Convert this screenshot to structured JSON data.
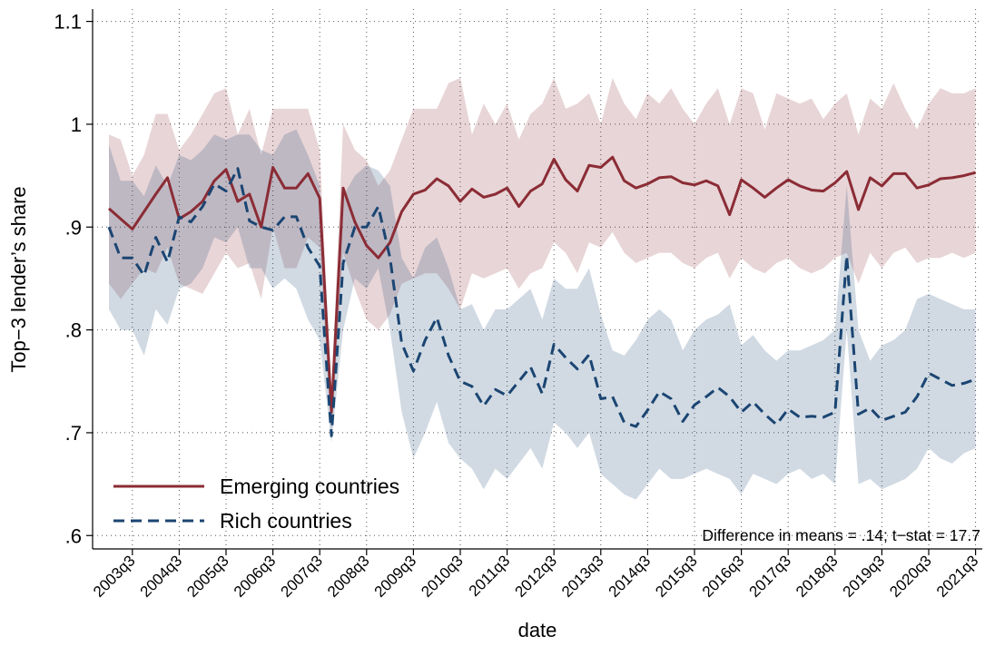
{
  "chart_data": {
    "type": "line",
    "x_label": "date",
    "y_label": "Top−3 lender’s share",
    "annotation": "Difference in means = .14; t−stat = 17.7",
    "categories": [
      null,
      null,
      "2003q3",
      null,
      null,
      null,
      "2004q3",
      null,
      null,
      null,
      "2005q3",
      null,
      null,
      null,
      "2006q3",
      null,
      null,
      null,
      "2007q3",
      null,
      null,
      null,
      "2008q3",
      null,
      null,
      null,
      "2009q3",
      null,
      null,
      null,
      "2010q3",
      null,
      null,
      null,
      "2011q3",
      null,
      null,
      null,
      "2012q3",
      null,
      null,
      null,
      "2013q3",
      null,
      null,
      null,
      "2014q3",
      null,
      null,
      null,
      "2015q3",
      null,
      null,
      null,
      "2016q3",
      null,
      null,
      null,
      "2017q3",
      null,
      null,
      null,
      "2018q3",
      null,
      null,
      null,
      "2019q3",
      null,
      null,
      null,
      "2020q3",
      null,
      null,
      null,
      "2021q3"
    ],
    "ylim": [
      0.587,
      1.112
    ],
    "yticks": [
      {
        "value": 0.6,
        "label": ".6"
      },
      {
        "value": 0.7,
        "label": ".7"
      },
      {
        "value": 0.8,
        "label": ".8"
      },
      {
        "value": 0.9,
        "label": ".9"
      },
      1,
      1.1
    ],
    "grid": true,
    "legend": "lower left",
    "series": [
      {
        "name": "Emerging countries",
        "color": "#8b2c35",
        "dash": "solid",
        "values": [
          0.918,
          0.908,
          0.898,
          0.915,
          0.932,
          0.948,
          0.908,
          0.915,
          0.925,
          0.945,
          0.956,
          0.925,
          0.932,
          0.9,
          0.958,
          0.938,
          0.938,
          0.952,
          0.928,
          0.72,
          0.938,
          0.905,
          0.882,
          0.87,
          0.885,
          0.915,
          0.932,
          0.936,
          0.947,
          0.94,
          0.925,
          0.937,
          0.929,
          0.932,
          0.938,
          0.92,
          0.935,
          0.942,
          0.966,
          0.946,
          0.935,
          0.96,
          0.958,
          0.968,
          0.945,
          0.938,
          0.942,
          0.948,
          0.949,
          0.943,
          0.941,
          0.945,
          0.94,
          0.912,
          0.946,
          0.938,
          0.929,
          0.938,
          0.946,
          0.94,
          0.936,
          0.935,
          0.943,
          0.954,
          0.917,
          0.948,
          0.94,
          0.952,
          0.952,
          0.938,
          0.941,
          0.947,
          0.948,
          0.95,
          0.953
        ],
        "upper": [
          0.99,
          0.985,
          0.95,
          0.97,
          1.01,
          1.01,
          0.975,
          0.99,
          1.01,
          1.03,
          1.035,
          0.99,
          1.015,
          0.97,
          1.015,
          1.015,
          1.015,
          1.015,
          0.975,
          0.74,
          1.0,
          0.975,
          0.965,
          0.94,
          0.955,
          0.985,
          1.015,
          1.015,
          1.015,
          1.04,
          1.045,
          0.99,
          1.02,
          1.0,
          1.02,
          0.985,
          1.01,
          1.02,
          1.045,
          1.015,
          1.02,
          1.03,
          1.0,
          1.045,
          1.02,
          1.005,
          1.03,
          1.02,
          1.035,
          1.015,
          1.0,
          1.02,
          1.035,
          1.0,
          1.035,
          1.03,
          0.995,
          1.03,
          1.025,
          1.02,
          1.025,
          1.005,
          1.02,
          1.03,
          0.99,
          1.025,
          1.015,
          1.04,
          1.015,
          0.995,
          1.02,
          1.035,
          1.03,
          1.03,
          1.035
        ],
        "lower": [
          0.845,
          0.83,
          0.845,
          0.86,
          0.855,
          0.88,
          0.845,
          0.84,
          0.835,
          0.855,
          0.875,
          0.86,
          0.865,
          0.83,
          0.9,
          0.86,
          0.86,
          0.89,
          0.88,
          0.7,
          0.875,
          0.84,
          0.81,
          0.8,
          0.815,
          0.845,
          0.85,
          0.855,
          0.855,
          0.84,
          0.82,
          0.855,
          0.85,
          0.855,
          0.86,
          0.84,
          0.855,
          0.86,
          0.885,
          0.875,
          0.855,
          0.885,
          0.88,
          0.895,
          0.875,
          0.865,
          0.87,
          0.875,
          0.875,
          0.865,
          0.86,
          0.87,
          0.875,
          0.85,
          0.87,
          0.86,
          0.855,
          0.865,
          0.87,
          0.86,
          0.855,
          0.86,
          0.87,
          0.875,
          0.845,
          0.875,
          0.86,
          0.875,
          0.88,
          0.865,
          0.87,
          0.87,
          0.875,
          0.87,
          0.875
        ]
      },
      {
        "name": "Rich countries",
        "color": "#1b4572",
        "dash": "dashed",
        "values": [
          0.9,
          0.87,
          0.87,
          0.853,
          0.89,
          0.866,
          0.91,
          0.905,
          0.92,
          0.942,
          0.935,
          0.957,
          0.906,
          0.9,
          0.897,
          0.91,
          0.91,
          0.88,
          0.862,
          0.697,
          0.865,
          0.9,
          0.9,
          0.92,
          0.87,
          0.787,
          0.76,
          0.79,
          0.812,
          0.775,
          0.75,
          0.745,
          0.726,
          0.742,
          0.736,
          0.75,
          0.764,
          0.738,
          0.786,
          0.773,
          0.762,
          0.776,
          0.733,
          0.735,
          0.71,
          0.706,
          0.722,
          0.74,
          0.733,
          0.711,
          0.727,
          0.735,
          0.744,
          0.735,
          0.72,
          0.73,
          0.718,
          0.708,
          0.723,
          0.715,
          0.716,
          0.715,
          0.72,
          0.872,
          0.718,
          0.724,
          0.712,
          0.716,
          0.72,
          0.735,
          0.758,
          0.752,
          0.746,
          0.748,
          0.752
        ],
        "upper": [
          0.98,
          0.945,
          0.945,
          0.93,
          0.96,
          0.94,
          0.97,
          0.965,
          0.975,
          0.99,
          0.985,
          0.99,
          0.99,
          0.975,
          0.97,
          0.99,
          0.995,
          0.97,
          0.94,
          0.72,
          0.93,
          0.95,
          0.96,
          0.955,
          0.94,
          0.87,
          0.85,
          0.88,
          0.89,
          0.86,
          0.82,
          0.825,
          0.8,
          0.82,
          0.82,
          0.83,
          0.84,
          0.81,
          0.85,
          0.84,
          0.84,
          0.86,
          0.815,
          0.78,
          0.775,
          0.79,
          0.81,
          0.82,
          0.81,
          0.78,
          0.8,
          0.81,
          0.815,
          0.825,
          0.785,
          0.795,
          0.78,
          0.77,
          0.78,
          0.78,
          0.785,
          0.79,
          0.8,
          0.94,
          0.8,
          0.77,
          0.785,
          0.79,
          0.8,
          0.83,
          0.835,
          0.83,
          0.825,
          0.82,
          0.82
        ],
        "lower": [
          0.82,
          0.8,
          0.8,
          0.775,
          0.82,
          0.805,
          0.84,
          0.845,
          0.86,
          0.89,
          0.885,
          0.9,
          0.86,
          0.86,
          0.84,
          0.85,
          0.84,
          0.81,
          0.79,
          0.69,
          0.8,
          0.85,
          0.84,
          0.86,
          0.8,
          0.72,
          0.675,
          0.7,
          0.73,
          0.69,
          0.675,
          0.665,
          0.645,
          0.665,
          0.655,
          0.67,
          0.685,
          0.665,
          0.71,
          0.7,
          0.685,
          0.7,
          0.66,
          0.65,
          0.64,
          0.635,
          0.65,
          0.665,
          0.655,
          0.655,
          0.66,
          0.665,
          0.66,
          0.655,
          0.64,
          0.66,
          0.655,
          0.65,
          0.66,
          0.665,
          0.655,
          0.66,
          0.65,
          0.8,
          0.65,
          0.655,
          0.645,
          0.65,
          0.655,
          0.665,
          0.685,
          0.675,
          0.67,
          0.68,
          0.685
        ]
      }
    ]
  }
}
